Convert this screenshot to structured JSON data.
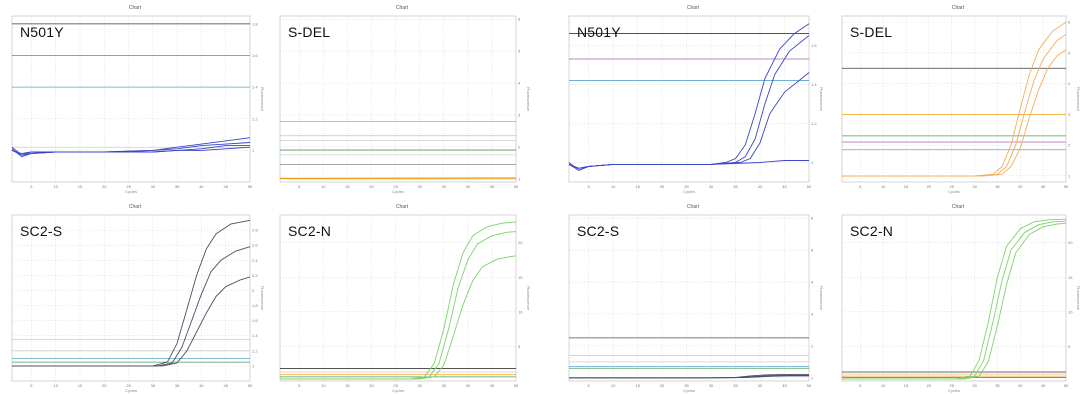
{
  "chart_data": [
    {
      "type": "line",
      "title": "Chart",
      "label": "N501Y",
      "xlabel": "Cycles",
      "ylabel": "Fluorescence",
      "xlim": [
        1,
        50
      ],
      "ylim": [
        0.8,
        1.85
      ],
      "x_ticks": [
        "5",
        "10",
        "15",
        "20",
        "25",
        "30",
        "35",
        "40",
        "45",
        "50"
      ],
      "y_ticks": [
        "1",
        "1.2",
        "1.4",
        "1.6",
        "1.8"
      ],
      "thresholds": [
        {
          "y": 1.8,
          "color": "#3a3a3a"
        },
        {
          "y": 1.6,
          "color": "#b25bb0"
        },
        {
          "y": 1.4,
          "color": "#55aacc"
        },
        {
          "y": 1.02,
          "color": "#cccccc"
        }
      ],
      "curve_color": "#3a45c8",
      "series": [
        {
          "x": [
            1,
            3,
            5,
            10,
            20,
            30,
            35,
            40,
            45,
            50
          ],
          "values": [
            1.02,
            0.97,
            0.99,
            0.99,
            0.99,
            1.0,
            1.02,
            1.04,
            1.06,
            1.08
          ]
        },
        {
          "x": [
            1,
            3,
            5,
            10,
            20,
            30,
            35,
            40,
            45,
            50
          ],
          "values": [
            1.01,
            0.96,
            0.98,
            0.99,
            0.99,
            1.0,
            1.01,
            1.03,
            1.04,
            1.05
          ]
        },
        {
          "x": [
            1,
            3,
            5,
            10,
            20,
            30,
            35,
            40,
            45,
            50
          ],
          "values": [
            1.0,
            0.97,
            0.98,
            0.99,
            0.99,
            0.99,
            1.0,
            1.01,
            1.03,
            1.03
          ]
        },
        {
          "x": [
            1,
            3,
            5,
            10,
            20,
            30,
            35,
            40,
            45,
            50
          ],
          "values": [
            1.0,
            0.98,
            0.99,
            0.99,
            0.99,
            0.99,
            1.0,
            1.0,
            1.01,
            1.02
          ]
        }
      ]
    },
    {
      "type": "line",
      "title": "Chart",
      "label": "S-DEL",
      "xlabel": "Cycles",
      "ylabel": "Fluorescence",
      "xlim": [
        1,
        50
      ],
      "ylim": [
        0.9,
        6.1
      ],
      "x_ticks": [
        "5",
        "10",
        "15",
        "20",
        "25",
        "30",
        "35",
        "40",
        "45",
        "50"
      ],
      "y_ticks": [
        "1",
        "2",
        "3",
        "4",
        "5",
        "6"
      ],
      "thresholds": [
        {
          "y": 2.8,
          "color": "#aaaaaa"
        },
        {
          "y": 2.35,
          "color": "#f2c4a0"
        },
        {
          "y": 2.2,
          "color": "#cccccc"
        },
        {
          "y": 1.9,
          "color": "#4d9a57"
        },
        {
          "y": 1.75,
          "color": "#cfcfcf"
        },
        {
          "y": 1.45,
          "color": "#999999"
        }
      ],
      "curve_color": "#f2a21a",
      "series": [
        {
          "x": [
            1,
            50
          ],
          "values": [
            1.0,
            1.0
          ]
        },
        {
          "x": [
            1,
            50
          ],
          "values": [
            1.02,
            1.03
          ]
        }
      ]
    },
    {
      "type": "line",
      "title": "Chart",
      "label": "N501Y",
      "xlabel": "Cycles",
      "ylabel": "Fluorescence",
      "xlim": [
        1,
        50
      ],
      "ylim": [
        0.9,
        1.75
      ],
      "x_ticks": [
        "5",
        "10",
        "15",
        "20",
        "25",
        "30",
        "35",
        "40",
        "45",
        "50"
      ],
      "y_ticks": [
        "1",
        "1.2",
        "1.4",
        "1.6"
      ],
      "thresholds": [
        {
          "y": 1.66,
          "color": "#3a3a3a"
        },
        {
          "y": 1.53,
          "color": "#b25bb0"
        },
        {
          "y": 1.42,
          "color": "#55aacc"
        }
      ],
      "curve_color": "#3a45c8",
      "series": [
        {
          "x": [
            1,
            3,
            5,
            10,
            20,
            30,
            33,
            35,
            37,
            39,
            41,
            44,
            47,
            50
          ],
          "values": [
            1.0,
            0.96,
            0.98,
            0.99,
            0.99,
            0.99,
            1.0,
            1.02,
            1.09,
            1.25,
            1.43,
            1.58,
            1.66,
            1.71
          ]
        },
        {
          "x": [
            1,
            3,
            5,
            10,
            20,
            30,
            35,
            37,
            39,
            41,
            43,
            46,
            50
          ],
          "values": [
            0.99,
            0.96,
            0.98,
            0.99,
            0.99,
            0.99,
            1.0,
            1.03,
            1.12,
            1.3,
            1.45,
            1.57,
            1.65
          ]
        },
        {
          "x": [
            1,
            3,
            5,
            10,
            20,
            30,
            36,
            38,
            40,
            42,
            45,
            50
          ],
          "values": [
            0.99,
            0.97,
            0.98,
            0.99,
            0.99,
            0.99,
            1.0,
            1.02,
            1.1,
            1.25,
            1.36,
            1.46
          ]
        },
        {
          "x": [
            1,
            3,
            5,
            10,
            20,
            30,
            40,
            45,
            50
          ],
          "values": [
            0.99,
            0.97,
            0.98,
            0.99,
            0.99,
            0.99,
            1.0,
            1.01,
            1.01
          ]
        }
      ]
    },
    {
      "type": "line",
      "title": "Chart",
      "label": "S-DEL",
      "xlabel": "Cycles",
      "ylabel": "Fluorescence",
      "xlim": [
        1,
        50
      ],
      "ylim": [
        0.8,
        6.2
      ],
      "x_ticks": [
        "5",
        "10",
        "15",
        "20",
        "25",
        "30",
        "35",
        "40",
        "45",
        "50"
      ],
      "y_ticks": [
        "1",
        "2",
        "3",
        "4",
        "5",
        "6"
      ],
      "thresholds": [
        {
          "y": 4.5,
          "color": "#3a3a3a"
        },
        {
          "y": 3.0,
          "color": "#f2a21a"
        },
        {
          "y": 2.3,
          "color": "#4d9a57"
        },
        {
          "y": 2.1,
          "color": "#b25bb0"
        },
        {
          "y": 1.85,
          "color": "#55aacc"
        }
      ],
      "curve_color": "#f5ae55",
      "series": [
        {
          "x": [
            1,
            30,
            34,
            36,
            38,
            40,
            42,
            44,
            47,
            50
          ],
          "values": [
            1.0,
            1.0,
            1.05,
            1.3,
            2.0,
            3.2,
            4.3,
            5.1,
            5.7,
            6.0
          ]
        },
        {
          "x": [
            1,
            31,
            35,
            37,
            39,
            41,
            43,
            45,
            48,
            50
          ],
          "values": [
            1.0,
            1.0,
            1.05,
            1.3,
            2.0,
            3.1,
            4.1,
            4.8,
            5.4,
            5.6
          ]
        },
        {
          "x": [
            1,
            32,
            36,
            38,
            40,
            42,
            44,
            46,
            48,
            50
          ],
          "values": [
            1.0,
            1.0,
            1.05,
            1.3,
            1.9,
            2.9,
            3.8,
            4.5,
            4.9,
            5.1
          ]
        }
      ]
    },
    {
      "type": "line",
      "title": "Chart",
      "label": "SC2-S",
      "xlabel": "Cycles",
      "ylabel": "Fluorescence",
      "xlim": [
        1,
        50
      ],
      "ylim": [
        0.8,
        3.0
      ],
      "x_ticks": [
        "5",
        "10",
        "15",
        "20",
        "25",
        "30",
        "35",
        "40",
        "45",
        "50"
      ],
      "y_ticks": [
        "1",
        "1.2",
        "1.4",
        "1.6",
        "1.8",
        "2",
        "2.2",
        "2.4",
        "2.6",
        "2.8"
      ],
      "thresholds": [
        {
          "y": 1.35,
          "color": "#f2c4a0"
        },
        {
          "y": 1.2,
          "color": "#cccccc"
        },
        {
          "y": 1.1,
          "color": "#55aacc"
        },
        {
          "y": 1.05,
          "color": "#4d9a57"
        }
      ],
      "curve_color": "#4a4f63",
      "series": [
        {
          "x": [
            1,
            30,
            33,
            35,
            37,
            39,
            41,
            43,
            46,
            50
          ],
          "values": [
            1.0,
            1.0,
            1.05,
            1.3,
            1.75,
            2.2,
            2.55,
            2.75,
            2.88,
            2.93
          ]
        },
        {
          "x": [
            1,
            31,
            34,
            36,
            38,
            40,
            42,
            44,
            47,
            50
          ],
          "values": [
            1.0,
            1.0,
            1.04,
            1.25,
            1.6,
            1.95,
            2.25,
            2.4,
            2.52,
            2.58
          ]
        },
        {
          "x": [
            1,
            32,
            35,
            37,
            39,
            41,
            43,
            45,
            48,
            50
          ],
          "values": [
            1.0,
            1.0,
            1.04,
            1.2,
            1.45,
            1.7,
            1.92,
            2.05,
            2.14,
            2.18
          ]
        }
      ]
    },
    {
      "type": "line",
      "title": "Chart",
      "label": "SC2-N",
      "xlabel": "Cycles",
      "ylabel": "Fluorescence",
      "xlim": [
        1,
        50
      ],
      "ylim": [
        0,
        24
      ],
      "x_ticks": [
        "5",
        "10",
        "15",
        "20",
        "25",
        "30",
        "35",
        "40",
        "45",
        "50"
      ],
      "y_ticks": [
        "5",
        "10",
        "15",
        "20"
      ],
      "thresholds": [
        {
          "y": 1.8,
          "color": "#3a3a3a"
        },
        {
          "y": 1.3,
          "color": "#f2c4a0"
        },
        {
          "y": 0.9,
          "color": "#f2a21a"
        },
        {
          "y": 0.6,
          "color": "#4d9a57"
        }
      ],
      "curve_color": "#7cd36a",
      "series": [
        {
          "x": [
            1,
            28,
            31,
            33,
            35,
            37,
            39,
            41,
            44,
            47,
            50
          ],
          "values": [
            0.3,
            0.3,
            0.6,
            2.5,
            7.5,
            14.0,
            18.5,
            21.0,
            22.3,
            22.8,
            23.0
          ]
        },
        {
          "x": [
            1,
            29,
            32,
            34,
            36,
            38,
            40,
            42,
            45,
            48,
            50
          ],
          "values": [
            0.3,
            0.3,
            0.6,
            2.5,
            7.5,
            13.5,
            17.5,
            19.8,
            21.0,
            21.5,
            21.6
          ]
        },
        {
          "x": [
            1,
            30,
            33,
            35,
            37,
            39,
            41,
            43,
            46,
            49,
            50
          ],
          "values": [
            0.3,
            0.3,
            0.6,
            2.3,
            6.5,
            11.0,
            14.5,
            16.5,
            17.6,
            18.0,
            18.1
          ]
        }
      ]
    },
    {
      "type": "line",
      "title": "Chart",
      "label": "SC2-S",
      "xlabel": "Cycles",
      "ylabel": "Fluorescence",
      "xlim": [
        1,
        50
      ],
      "ylim": [
        0.9,
        6.1
      ],
      "x_ticks": [
        "5",
        "10",
        "15",
        "20",
        "25",
        "30",
        "35",
        "40",
        "45",
        "50"
      ],
      "y_ticks": [
        "1",
        "2",
        "3",
        "4",
        "5",
        "6"
      ],
      "thresholds": [
        {
          "y": 2.25,
          "color": "#4a4f63"
        },
        {
          "y": 1.7,
          "color": "#f2c4a0"
        },
        {
          "y": 1.5,
          "color": "#cccccc"
        },
        {
          "y": 1.35,
          "color": "#55aacc"
        },
        {
          "y": 1.3,
          "color": "#4d9a57"
        }
      ],
      "curve_color": "#4a4f63",
      "series": [
        {
          "x": [
            1,
            30,
            35,
            38,
            41,
            44,
            47,
            50
          ],
          "values": [
            1.0,
            1.0,
            1.01,
            1.06,
            1.09,
            1.1,
            1.1,
            1.1
          ]
        },
        {
          "x": [
            1,
            30,
            36,
            39,
            42,
            45,
            48,
            50
          ],
          "values": [
            1.0,
            1.0,
            1.01,
            1.04,
            1.07,
            1.08,
            1.08,
            1.08
          ]
        },
        {
          "x": [
            1,
            30,
            37,
            40,
            43,
            46,
            50
          ],
          "values": [
            1.0,
            1.0,
            1.01,
            1.03,
            1.05,
            1.06,
            1.06
          ]
        }
      ]
    },
    {
      "type": "line",
      "title": "Chart",
      "label": "SC2-N",
      "xlabel": "Cycles",
      "ylabel": "Fluorescence",
      "xlim": [
        1,
        50
      ],
      "ylim": [
        0,
        24
      ],
      "x_ticks": [
        "5",
        "10",
        "15",
        "20",
        "25",
        "30",
        "35",
        "40",
        "45",
        "50"
      ],
      "y_ticks": [
        "5",
        "10",
        "15",
        "20"
      ],
      "thresholds": [
        {
          "y": 1.3,
          "color": "#3a3a3a"
        },
        {
          "y": 1.0,
          "color": "#f2c4a0"
        },
        {
          "y": 0.7,
          "color": "#f2a21a"
        },
        {
          "y": 0.5,
          "color": "#4d9a57"
        }
      ],
      "curve_color": "#7cd36a",
      "series": [
        {
          "x": [
            1,
            26,
            29,
            31,
            33,
            35,
            37,
            40,
            43,
            46,
            50
          ],
          "values": [
            0.3,
            0.3,
            0.7,
            3.0,
            8.5,
            15.0,
            19.5,
            22.0,
            23.0,
            23.3,
            23.4
          ]
        },
        {
          "x": [
            1,
            27,
            30,
            32,
            34,
            36,
            38,
            41,
            44,
            47,
            50
          ],
          "values": [
            0.3,
            0.3,
            0.7,
            3.0,
            8.5,
            14.5,
            19.0,
            21.5,
            22.6,
            23.0,
            23.1
          ]
        },
        {
          "x": [
            1,
            28,
            31,
            33,
            35,
            37,
            39,
            42,
            45,
            48,
            50
          ],
          "values": [
            0.3,
            0.3,
            0.7,
            2.8,
            8.0,
            14.0,
            18.5,
            21.2,
            22.3,
            22.7,
            22.8
          ]
        }
      ]
    }
  ]
}
